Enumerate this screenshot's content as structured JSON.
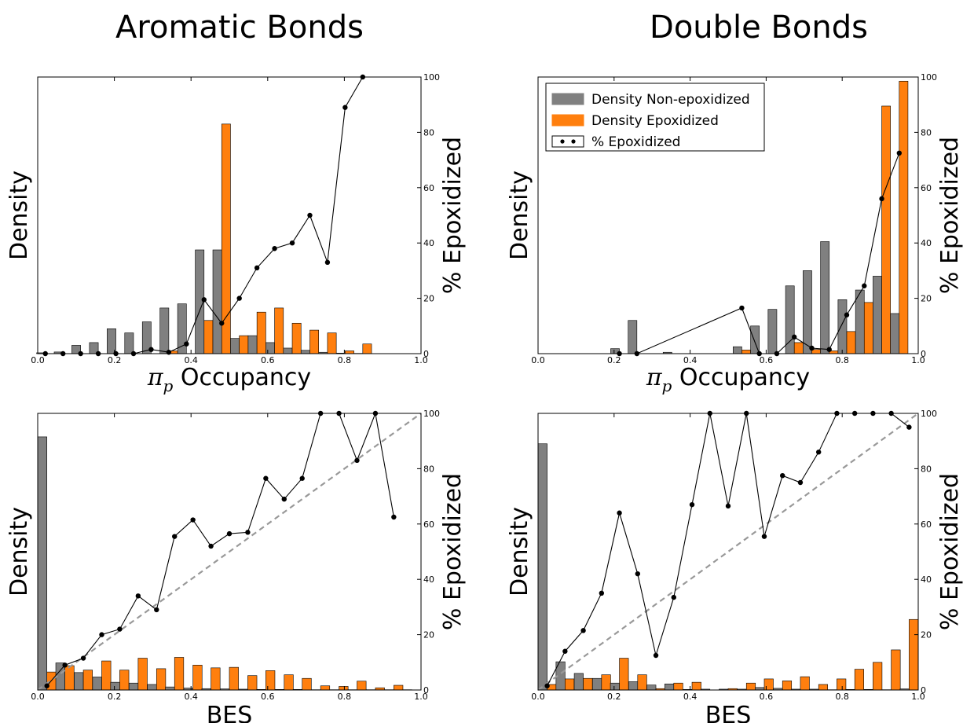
{
  "column_titles": [
    "Aromatic Bonds",
    "Double Bonds"
  ],
  "colors": {
    "non_epoxidized": "#808080",
    "epoxidized": "#ff7f0e",
    "line": "#000000",
    "diagonal": "#999999"
  },
  "legend": {
    "non_epoxidized": "Density Non-epoxidized",
    "epoxidized": "Density Epoxidized",
    "percent": "% Epoxidized"
  },
  "chart_data": [
    {
      "type": "bar",
      "title": "Aromatic Bonds",
      "xlabel_symbol": "π",
      "xlabel_subscript": "p",
      "xlabel": "Occupancy",
      "ylabel": "Density",
      "y2label": "% Epoxidized",
      "xlim": [
        0,
        1
      ],
      "ylim": [
        0,
        1
      ],
      "y2lim": [
        0,
        100
      ],
      "xticks": [
        "0.0",
        "0.2",
        "0.4",
        "0.6",
        "0.8",
        "1.0"
      ],
      "y2ticks": [
        "0",
        "20",
        "40",
        "60",
        "80",
        "100"
      ],
      "bin_width": 0.046,
      "bins": [
        0.02,
        0.066,
        0.112,
        0.158,
        0.204,
        0.25,
        0.296,
        0.342,
        0.388,
        0.434,
        0.48,
        0.526,
        0.572,
        0.618,
        0.664,
        0.71,
        0.756,
        0.802,
        0.848
      ],
      "series": [
        {
          "name": "Density Non-epoxidized",
          "values": [
            0.003,
            0.006,
            0.03,
            0.04,
            0.09,
            0.075,
            0.115,
            0.165,
            0.18,
            0.375,
            0.375,
            0.055,
            0.065,
            0.04,
            0.02,
            0.012,
            0.005,
            0.002,
            0.001
          ]
        },
        {
          "name": "Density Epoxidized",
          "values": [
            0,
            0,
            0,
            0,
            0,
            0,
            0,
            0.01,
            0,
            0.12,
            0.83,
            0.065,
            0.15,
            0.165,
            0.11,
            0.085,
            0.075,
            0.01,
            0.035
          ]
        }
      ],
      "percent_line": {
        "name": "% Epoxidized",
        "x": [
          0.02,
          0.066,
          0.112,
          0.158,
          0.204,
          0.25,
          0.296,
          0.342,
          0.388,
          0.434,
          0.48,
          0.526,
          0.572,
          0.618,
          0.664,
          0.71,
          0.756,
          0.802,
          0.848
        ],
        "y": [
          0,
          0,
          0,
          0,
          0,
          0,
          1.5,
          0.5,
          3.5,
          19.5,
          11,
          20,
          31,
          38,
          40,
          50,
          33,
          89,
          100
        ]
      },
      "legend_visible": false,
      "diagonal": false
    },
    {
      "type": "bar",
      "title": "Double Bonds",
      "xlabel_symbol": "π",
      "xlabel_subscript": "p",
      "xlabel": "Occupancy",
      "ylabel": "Density",
      "y2label": "% Epoxidized",
      "xlim": [
        0,
        1
      ],
      "ylim": [
        0,
        1
      ],
      "y2lim": [
        0,
        100
      ],
      "xticks": [
        "0.0",
        "0.2",
        "0.4",
        "0.6",
        "0.8",
        "1.0"
      ],
      "y2ticks": [
        "0",
        "20",
        "40",
        "60",
        "80",
        "100"
      ],
      "bin_width": 0.046,
      "bins": [
        0.214,
        0.26,
        0.352,
        0.536,
        0.582,
        0.628,
        0.674,
        0.72,
        0.766,
        0.812,
        0.858,
        0.904,
        0.95
      ],
      "series": [
        {
          "name": "Density Non-epoxidized",
          "values": [
            0.018,
            0.12,
            0.005,
            0.025,
            0.1,
            0.16,
            0.245,
            0.3,
            0.405,
            0.195,
            0.23,
            0.28,
            0.145
          ]
        },
        {
          "name": "Density Epoxidized",
          "values": [
            0,
            0,
            0,
            0.013,
            0,
            0,
            0.04,
            0.015,
            0.01,
            0.08,
            0.185,
            0.895,
            0.985
          ]
        }
      ],
      "percent_line": {
        "name": "% Epoxidized",
        "x": [
          0.214,
          0.26,
          0.536,
          0.582,
          0.628,
          0.674,
          0.72,
          0.766,
          0.812,
          0.858,
          0.904,
          0.95
        ],
        "y": [
          0,
          0,
          16.5,
          0,
          0,
          6,
          2,
          1.5,
          14,
          24.5,
          56,
          72.5
        ]
      },
      "legend_visible": true,
      "legend_position": "upper-left",
      "diagonal": false
    },
    {
      "type": "bar",
      "title": "",
      "xlabel": "BES",
      "ylabel": "Density",
      "y2label": "% Epoxidized",
      "xlim": [
        0,
        1
      ],
      "ylim": [
        0,
        1
      ],
      "y2lim": [
        0,
        100
      ],
      "xticks": [
        "0.0",
        "0.2",
        "0.4",
        "0.6",
        "0.8",
        "1.0"
      ],
      "y2ticks": [
        "0",
        "20",
        "40",
        "60",
        "80",
        "100"
      ],
      "bin_width": 0.0476,
      "bins": [
        0.024,
        0.071,
        0.119,
        0.167,
        0.214,
        0.262,
        0.31,
        0.357,
        0.405,
        0.452,
        0.5,
        0.548,
        0.595,
        0.643,
        0.69,
        0.738,
        0.786,
        0.833,
        0.881,
        0.929,
        0.976
      ],
      "series": [
        {
          "name": "Density Non-epoxidized",
          "values": [
            0.915,
            0.098,
            0.063,
            0.047,
            0.028,
            0.025,
            0.02,
            0.011,
            0.007,
            0.005,
            0.004,
            0.003,
            0.002,
            0.002,
            0.002,
            0.001,
            0.001,
            0.001,
            0.001,
            0.001,
            0.001
          ]
        },
        {
          "name": "Density Epoxidized",
          "values": [
            0.065,
            0.088,
            0.072,
            0.105,
            0.072,
            0.115,
            0.077,
            0.118,
            0.09,
            0.08,
            0.082,
            0.052,
            0.07,
            0.055,
            0.042,
            0.015,
            0.013,
            0.032,
            0.008,
            0.017,
            0
          ]
        }
      ],
      "percent_line": {
        "name": "% Epoxidized",
        "x": [
          0.024,
          0.071,
          0.119,
          0.167,
          0.214,
          0.262,
          0.31,
          0.357,
          0.405,
          0.452,
          0.5,
          0.548,
          0.595,
          0.643,
          0.69,
          0.738,
          0.786,
          0.833,
          0.881,
          0.929
        ],
        "y": [
          1.5,
          9,
          11.5,
          20,
          22,
          34,
          29,
          55.5,
          61.5,
          52,
          56.5,
          57,
          76.5,
          69,
          76.5,
          100,
          100,
          83,
          100,
          62.5
        ]
      },
      "legend_visible": false,
      "diagonal": true
    },
    {
      "type": "bar",
      "title": "",
      "xlabel": "BES",
      "ylabel": "Density",
      "y2label": "% Epoxidized",
      "xlim": [
        0,
        1
      ],
      "ylim": [
        0,
        1
      ],
      "y2lim": [
        0,
        100
      ],
      "xticks": [
        "0.0",
        "0.2",
        "0.4",
        "0.6",
        "0.8",
        "1.0"
      ],
      "y2ticks": [
        "0",
        "20",
        "40",
        "60",
        "80",
        "100"
      ],
      "bin_width": 0.0476,
      "bins": [
        0.024,
        0.071,
        0.119,
        0.167,
        0.214,
        0.262,
        0.31,
        0.357,
        0.405,
        0.452,
        0.5,
        0.548,
        0.595,
        0.643,
        0.69,
        0.738,
        0.786,
        0.833,
        0.881,
        0.929,
        0.976
      ],
      "series": [
        {
          "name": "Density Non-epoxidized",
          "values": [
            0.89,
            0.102,
            0.06,
            0.042,
            0.025,
            0.03,
            0.018,
            0.022,
            0.002,
            0.003,
            0.003,
            0.003,
            0.009,
            0.006,
            0.003,
            0.003,
            0.001,
            0.002,
            0.002,
            0.001,
            0.004
          ]
        },
        {
          "name": "Density Epoxidized",
          "values": [
            0.02,
            0.04,
            0.042,
            0.055,
            0.115,
            0.055,
            0.005,
            0.025,
            0.028,
            0,
            0.005,
            0.025,
            0.04,
            0.033,
            0.048,
            0.02,
            0.04,
            0.075,
            0.1,
            0.145,
            0.255
          ]
        }
      ],
      "percent_line": {
        "name": "% Epoxidized",
        "x": [
          0.024,
          0.071,
          0.119,
          0.167,
          0.214,
          0.262,
          0.31,
          0.357,
          0.405,
          0.452,
          0.5,
          0.548,
          0.595,
          0.643,
          0.69,
          0.738,
          0.786,
          0.833,
          0.881,
          0.929,
          0.976
        ],
        "y": [
          1.5,
          14,
          21.5,
          35,
          64,
          42,
          12.5,
          33.5,
          67,
          100,
          66.5,
          100,
          55.5,
          77.5,
          75,
          86,
          100,
          100,
          100,
          100,
          95
        ]
      },
      "legend_visible": false,
      "diagonal": true
    }
  ]
}
